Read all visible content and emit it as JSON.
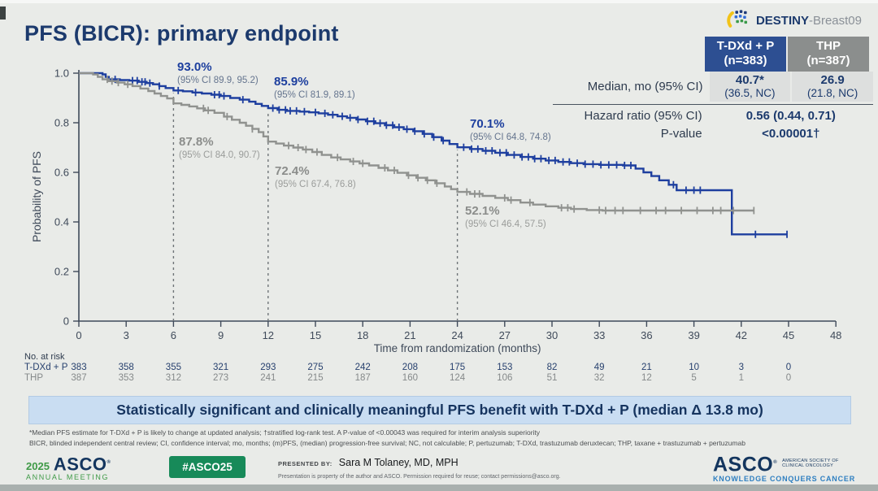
{
  "header": {
    "title": "PFS (BICR): primary endpoint",
    "logo_text": "DESTINY",
    "logo_suffix": "-Breast09"
  },
  "stats_table": {
    "arm1_name": "T-DXd + P",
    "arm1_n": "(n=383)",
    "arm2_name": "THP",
    "arm2_n": "(n=387)",
    "median_label": "Median, mo (95% CI)",
    "arm1_median": "40.7*",
    "arm1_median_ci": "(36.5, NC)",
    "arm2_median": "26.9",
    "arm2_median_ci": "(21.8, NC)",
    "hr_label": "Hazard ratio (95% CI)",
    "hr_value": "0.56 (0.44, 0.71)",
    "p_label": "P-value",
    "p_value": "<0.00001†"
  },
  "chart_data": {
    "type": "line",
    "subtype": "kaplan-meier-step",
    "title": "",
    "xlabel": "Time from randomization (months)",
    "ylabel": "Probability of PFS",
    "xlim": [
      0,
      48
    ],
    "ylim": [
      0,
      1.0
    ],
    "x_ticks": [
      0,
      3,
      6,
      9,
      12,
      15,
      18,
      21,
      24,
      27,
      30,
      33,
      36,
      39,
      42,
      45,
      48
    ],
    "y_tick_labels": [
      "0",
      "0.2",
      "0.4",
      "0.6",
      "0.8",
      "1.0"
    ],
    "y_tick_values": [
      0,
      0.2,
      0.4,
      0.6,
      0.8,
      1.0
    ],
    "grid": false,
    "landmark_lines_x": [
      6,
      12,
      24
    ],
    "series": [
      {
        "name": "T-DXd + P",
        "color": "#1e3f9f",
        "points": [
          [
            0,
            1.0
          ],
          [
            1.5,
            0.995
          ],
          [
            1.7,
            0.985
          ],
          [
            1.9,
            0.975
          ],
          [
            2.6,
            0.972
          ],
          [
            3.2,
            0.97
          ],
          [
            3.8,
            0.965
          ],
          [
            4.3,
            0.96
          ],
          [
            4.7,
            0.955
          ],
          [
            5.1,
            0.948
          ],
          [
            5.5,
            0.94
          ],
          [
            6,
            0.93
          ],
          [
            6.6,
            0.927
          ],
          [
            7.2,
            0.922
          ],
          [
            7.8,
            0.918
          ],
          [
            8.4,
            0.913
          ],
          [
            9,
            0.908
          ],
          [
            9.6,
            0.9
          ],
          [
            10.2,
            0.893
          ],
          [
            10.8,
            0.885
          ],
          [
            11.2,
            0.876
          ],
          [
            11.6,
            0.868
          ],
          [
            12,
            0.859
          ],
          [
            12.6,
            0.852
          ],
          [
            13.2,
            0.848
          ],
          [
            14,
            0.845
          ],
          [
            14.6,
            0.842
          ],
          [
            15.2,
            0.838
          ],
          [
            15.8,
            0.832
          ],
          [
            16.4,
            0.826
          ],
          [
            17,
            0.82
          ],
          [
            17.6,
            0.813
          ],
          [
            18.2,
            0.806
          ],
          [
            18.8,
            0.798
          ],
          [
            19.4,
            0.79
          ],
          [
            20,
            0.782
          ],
          [
            20.6,
            0.774
          ],
          [
            21.2,
            0.766
          ],
          [
            21.8,
            0.755
          ],
          [
            22.4,
            0.742
          ],
          [
            23,
            0.728
          ],
          [
            23.5,
            0.714
          ],
          [
            24,
            0.701
          ],
          [
            24.8,
            0.694
          ],
          [
            25.6,
            0.687
          ],
          [
            26.4,
            0.679
          ],
          [
            27.2,
            0.67
          ],
          [
            28,
            0.662
          ],
          [
            28.8,
            0.655
          ],
          [
            29.6,
            0.648
          ],
          [
            30.4,
            0.642
          ],
          [
            31.2,
            0.637
          ],
          [
            32,
            0.633
          ],
          [
            33,
            0.63
          ],
          [
            34.5,
            0.628
          ],
          [
            35.3,
            0.615
          ],
          [
            35.8,
            0.6
          ],
          [
            36.3,
            0.585
          ],
          [
            36.8,
            0.568
          ],
          [
            37.4,
            0.55
          ],
          [
            37.9,
            0.528
          ],
          [
            41.4,
            0.35
          ],
          [
            44.9,
            0.35
          ]
        ],
        "censor_times": [
          2.3,
          3.4,
          3.7,
          4.0,
          4.2,
          4.5,
          5.1,
          6.3,
          7.4,
          8.6,
          8.9,
          9.2,
          10.4,
          12.3,
          12.7,
          13.1,
          13.4,
          13.8,
          14.3,
          15.0,
          15.6,
          16.1,
          16.7,
          17.2,
          17.7,
          18.3,
          18.7,
          19.1,
          19.5,
          19.9,
          20.3,
          20.8,
          21.3,
          21.9,
          22.5,
          23.1,
          24.4,
          24.9,
          25.3,
          25.8,
          26.2,
          26.7,
          27.1,
          27.6,
          28.1,
          28.5,
          28.9,
          29.3,
          29.8,
          30.2,
          30.7,
          31.1,
          31.6,
          32.1,
          32.6,
          33.1,
          33.6,
          34.1,
          34.6,
          35.0,
          37.7,
          38.5,
          39.0,
          39.4,
          42.9,
          44.9
        ]
      },
      {
        "name": "THP",
        "color": "#90928f",
        "points": [
          [
            0,
            1.0
          ],
          [
            0.9,
            0.995
          ],
          [
            1.2,
            0.985
          ],
          [
            1.5,
            0.975
          ],
          [
            1.9,
            0.968
          ],
          [
            2.4,
            0.962
          ],
          [
            2.9,
            0.955
          ],
          [
            3.4,
            0.948
          ],
          [
            3.9,
            0.938
          ],
          [
            4.4,
            0.928
          ],
          [
            4.8,
            0.918
          ],
          [
            5.2,
            0.908
          ],
          [
            5.6,
            0.898
          ],
          [
            6,
            0.878
          ],
          [
            6.5,
            0.872
          ],
          [
            7,
            0.866
          ],
          [
            7.5,
            0.858
          ],
          [
            8,
            0.85
          ],
          [
            8.6,
            0.84
          ],
          [
            9.2,
            0.825
          ],
          [
            9.7,
            0.812
          ],
          [
            10.2,
            0.8
          ],
          [
            10.6,
            0.788
          ],
          [
            11,
            0.775
          ],
          [
            11.4,
            0.762
          ],
          [
            11.7,
            0.745
          ],
          [
            12,
            0.724
          ],
          [
            12.5,
            0.716
          ],
          [
            13,
            0.708
          ],
          [
            13.6,
            0.7
          ],
          [
            14.2,
            0.692
          ],
          [
            14.8,
            0.682
          ],
          [
            15.4,
            0.67
          ],
          [
            16,
            0.66
          ],
          [
            16.6,
            0.652
          ],
          [
            17.2,
            0.644
          ],
          [
            17.8,
            0.636
          ],
          [
            18.4,
            0.628
          ],
          [
            19,
            0.618
          ],
          [
            19.6,
            0.608
          ],
          [
            20.2,
            0.598
          ],
          [
            20.8,
            0.588
          ],
          [
            21.4,
            0.578
          ],
          [
            22,
            0.568
          ],
          [
            22.6,
            0.556
          ],
          [
            23.2,
            0.543
          ],
          [
            23.6,
            0.532
          ],
          [
            24,
            0.521
          ],
          [
            24.8,
            0.513
          ],
          [
            25.6,
            0.505
          ],
          [
            26.4,
            0.497
          ],
          [
            27.2,
            0.488
          ],
          [
            28,
            0.478
          ],
          [
            28.8,
            0.47
          ],
          [
            29.6,
            0.463
          ],
          [
            30.4,
            0.457
          ],
          [
            31.2,
            0.452
          ],
          [
            32.2,
            0.448
          ],
          [
            33.2,
            0.446
          ],
          [
            42.8,
            0.446
          ]
        ],
        "censor_times": [
          1.8,
          2.1,
          2.5,
          3.1,
          7.9,
          8.2,
          9.4,
          11.0,
          13.3,
          13.9,
          14.4,
          15.1,
          16.4,
          17.4,
          18.0,
          19.4,
          20.0,
          20.9,
          21.5,
          22.1,
          22.7,
          24.6,
          25.1,
          25.4,
          27.0,
          27.4,
          28.6,
          30.6,
          31.0,
          31.4,
          33.0,
          33.4,
          34.0,
          34.5,
          35.6,
          36.6,
          37.2,
          38.2,
          39.2,
          40.2,
          40.7,
          41.5,
          42.8
        ]
      }
    ],
    "landmark_labels": [
      {
        "series": "T-DXd + P",
        "time": 6,
        "value": "93.0%",
        "ci": "(95% CI 89.9, 95.2)"
      },
      {
        "series": "T-DXd + P",
        "time": 12,
        "value": "85.9%",
        "ci": "(95% CI 81.9, 89.1)"
      },
      {
        "series": "T-DXd + P",
        "time": 24,
        "value": "70.1%",
        "ci": "(95% CI 64.8, 74.8)"
      },
      {
        "series": "THP",
        "time": 6,
        "value": "87.8%",
        "ci": "(95% CI 84.0, 90.7)"
      },
      {
        "series": "THP",
        "time": 12,
        "value": "72.4%",
        "ci": "(95% CI 67.4, 76.8)"
      },
      {
        "series": "THP",
        "time": 24,
        "value": "52.1%",
        "ci": "(95% CI 46.4, 57.5)"
      }
    ]
  },
  "risk_table": {
    "title": "No. at risk",
    "rows": [
      {
        "label": "T-DXd + P",
        "counts": [
          383,
          358,
          355,
          321,
          293,
          275,
          242,
          208,
          175,
          153,
          82,
          49,
          21,
          10,
          3,
          0
        ]
      },
      {
        "label": "THP",
        "counts": [
          387,
          353,
          312,
          273,
          241,
          215,
          187,
          160,
          124,
          106,
          51,
          32,
          12,
          5,
          1,
          0
        ]
      }
    ]
  },
  "banner": "Statistically significant and clinically meaningful PFS benefit with T-DXd + P (median Δ 13.8 mo)",
  "footnotes": [
    "*Median PFS estimate for T-DXd + P is likely to change at updated analysis; †stratified log-rank test. A P-value of <0.00043 was required for interim analysis superiority",
    "BICR, blinded independent central review; CI, confidence interval; mo, months; (m)PFS, (median) progression-free survival; NC, not calculable; P, pertuzumab; T-DXd, trastuzumab deruxtecan; THP, taxane + trastuzumab + pertuzumab"
  ],
  "footer": {
    "year": "2025",
    "org": "ASCO",
    "meeting": "ANNUAL MEETING",
    "hashtag": "#ASCO25",
    "presented_by_label": "PRESENTED BY:",
    "presenter": "Sara M Tolaney, MD, MPH",
    "disclaimer": "Presentation is property of the author and ASCO. Permission required for reuse; contact permissions@asco.org.",
    "right_org": "ASCO",
    "right_sub1": "AMERICAN SOCIETY OF",
    "right_sub2": "CLINICAL ONCOLOGY",
    "right_tagline": "KNOWLEDGE CONQUERS CANCER"
  }
}
